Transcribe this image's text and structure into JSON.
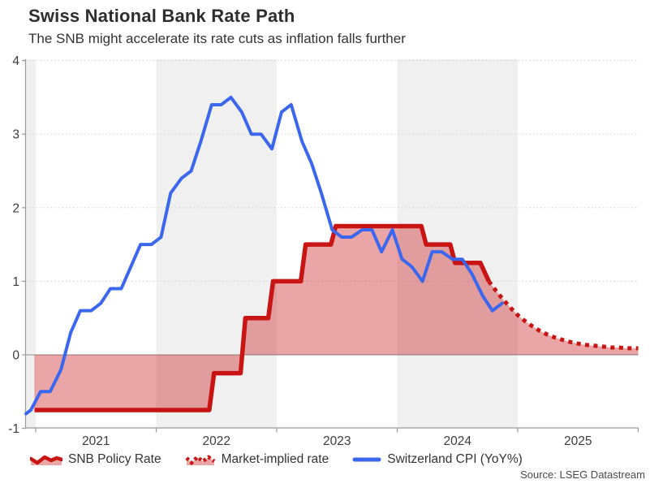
{
  "header": {
    "title": "Swiss National Bank Rate Path",
    "subtitle": "The SNB might accelerate its rate cuts as inflation falls further"
  },
  "source": "Source: LSEG Datastream",
  "legend": {
    "items": [
      {
        "label": "SNB Policy Rate",
        "style": "solid-area",
        "color": "#c91414"
      },
      {
        "label": "Market-implied rate",
        "style": "dotted-area",
        "color": "#c91414"
      },
      {
        "label": "Switzerland CPI (YoY%)",
        "style": "line",
        "color": "#3a67ee"
      }
    ]
  },
  "colors": {
    "red_line": "#c91414",
    "area_fill": "rgba(201,20,20,0.38)",
    "blue_line": "#3a67ee",
    "year_band": "#f0f0f0",
    "gridline": "#cdcdcd",
    "zero_line": "#a0a0a0",
    "axis": "#9a9a9a",
    "tick_label": "#3d3d3d"
  },
  "chart_data": {
    "type": "line",
    "title": "Swiss National Bank Rate Path",
    "subtitle": "The SNB might accelerate its rate cuts as inflation falls further",
    "x_axis": {
      "range": [
        2020.92,
        2026.0
      ],
      "tick_labels": [
        "2021",
        "2022",
        "2023",
        "2024",
        "2025"
      ],
      "tick_centers": [
        2021.5,
        2022.5,
        2023.5,
        2024.5,
        2025.5
      ],
      "year_tick_positions": [
        2021,
        2022,
        2023,
        2024,
        2025,
        2026
      ],
      "shaded_year_bands": [
        [
          2020.92,
          2021
        ],
        [
          2022,
          2023
        ],
        [
          2024,
          2025
        ]
      ]
    },
    "y_axis": {
      "range": [
        -1,
        4
      ],
      "tick_labels": [
        4,
        3,
        2,
        1,
        0,
        -1
      ],
      "dotted_gridlines": [
        1,
        2,
        3,
        4
      ],
      "zero_line": true
    },
    "legend_position": "bottom",
    "series": [
      {
        "name": "SNB Policy Rate",
        "type": "step",
        "line_style": "solid",
        "color": "#c91414",
        "area_fill_to_zero": true,
        "points": [
          [
            2020.99,
            -0.75
          ],
          [
            2022.44,
            -0.75
          ],
          [
            2022.48,
            -0.25
          ],
          [
            2022.7,
            -0.25
          ],
          [
            2022.74,
            0.5
          ],
          [
            2022.93,
            0.5
          ],
          [
            2022.97,
            1.0
          ],
          [
            2023.2,
            1.0
          ],
          [
            2023.24,
            1.5
          ],
          [
            2023.45,
            1.5
          ],
          [
            2023.49,
            1.75
          ],
          [
            2024.2,
            1.75
          ],
          [
            2024.24,
            1.5
          ],
          [
            2024.44,
            1.5
          ],
          [
            2024.48,
            1.25
          ],
          [
            2024.69,
            1.25
          ],
          [
            2024.76,
            1.0
          ]
        ]
      },
      {
        "name": "Market-implied rate",
        "type": "line",
        "line_style": "dotted",
        "color": "#c91414",
        "area_fill_to_zero": true,
        "points": [
          [
            2024.76,
            1.0
          ],
          [
            2024.82,
            0.87
          ],
          [
            2024.88,
            0.75
          ],
          [
            2024.94,
            0.64
          ],
          [
            2025.0,
            0.54
          ],
          [
            2025.06,
            0.46
          ],
          [
            2025.12,
            0.39
          ],
          [
            2025.18,
            0.33
          ],
          [
            2025.24,
            0.28
          ],
          [
            2025.3,
            0.24
          ],
          [
            2025.36,
            0.21
          ],
          [
            2025.42,
            0.18
          ],
          [
            2025.48,
            0.16
          ],
          [
            2025.54,
            0.14
          ],
          [
            2025.6,
            0.13
          ],
          [
            2025.66,
            0.12
          ],
          [
            2025.72,
            0.11
          ],
          [
            2025.78,
            0.1
          ],
          [
            2025.84,
            0.1
          ],
          [
            2025.9,
            0.09
          ],
          [
            2025.96,
            0.09
          ],
          [
            2026.0,
            0.09
          ]
        ]
      },
      {
        "name": "Switzerland CPI (YoY%)",
        "type": "line",
        "line_style": "solid",
        "color": "#3a67ee",
        "points": [
          [
            2020.92,
            -0.8
          ],
          [
            2020.96,
            -0.75
          ],
          [
            2021.04,
            -0.5
          ],
          [
            2021.12,
            -0.5
          ],
          [
            2021.21,
            -0.2
          ],
          [
            2021.29,
            0.3
          ],
          [
            2021.37,
            0.6
          ],
          [
            2021.46,
            0.6
          ],
          [
            2021.54,
            0.7
          ],
          [
            2021.62,
            0.9
          ],
          [
            2021.71,
            0.9
          ],
          [
            2021.79,
            1.2
          ],
          [
            2021.87,
            1.5
          ],
          [
            2021.96,
            1.5
          ],
          [
            2022.04,
            1.6
          ],
          [
            2022.12,
            2.2
          ],
          [
            2022.21,
            2.4
          ],
          [
            2022.29,
            2.5
          ],
          [
            2022.37,
            2.9
          ],
          [
            2022.46,
            3.4
          ],
          [
            2022.54,
            3.4
          ],
          [
            2022.62,
            3.5
          ],
          [
            2022.71,
            3.3
          ],
          [
            2022.79,
            3.0
          ],
          [
            2022.87,
            3.0
          ],
          [
            2022.96,
            2.8
          ],
          [
            2023.04,
            3.3
          ],
          [
            2023.12,
            3.4
          ],
          [
            2023.21,
            2.9
          ],
          [
            2023.29,
            2.6
          ],
          [
            2023.37,
            2.2
          ],
          [
            2023.46,
            1.7
          ],
          [
            2023.54,
            1.6
          ],
          [
            2023.62,
            1.6
          ],
          [
            2023.71,
            1.7
          ],
          [
            2023.79,
            1.7
          ],
          [
            2023.87,
            1.4
          ],
          [
            2023.96,
            1.7
          ],
          [
            2024.04,
            1.3
          ],
          [
            2024.12,
            1.2
          ],
          [
            2024.21,
            1.0
          ],
          [
            2024.29,
            1.4
          ],
          [
            2024.37,
            1.4
          ],
          [
            2024.46,
            1.3
          ],
          [
            2024.54,
            1.3
          ],
          [
            2024.62,
            1.1
          ],
          [
            2024.71,
            0.8
          ],
          [
            2024.79,
            0.6
          ],
          [
            2024.87,
            0.7
          ]
        ]
      }
    ]
  }
}
